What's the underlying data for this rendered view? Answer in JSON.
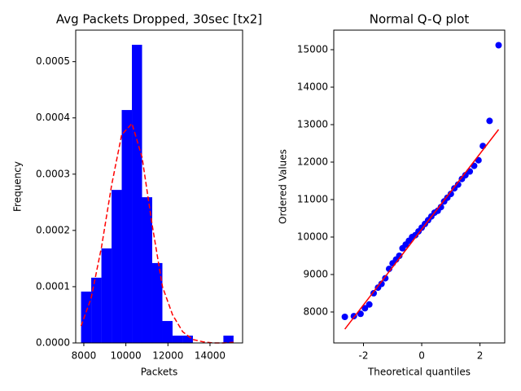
{
  "chart_data": [
    {
      "type": "histogram",
      "title": "Avg Packets Dropped, 30sec [tx2]",
      "x_label": "Packets",
      "y_label": "Frequency",
      "bins": [
        7870,
        8353,
        8837,
        9320,
        9803,
        10287,
        10770,
        11253,
        11737,
        12220,
        12703,
        13187,
        13670,
        14153,
        14637,
        15120
      ],
      "values": [
        9.13e-05,
        0.000116,
        0.000168,
        0.000272,
        0.000414,
        0.00053,
        0.000259,
        0.000142,
        3.9e-05,
        1.3e-05,
        1.3e-05,
        0,
        0,
        0,
        1.3e-05
      ],
      "color": "#0000ff",
      "fit_line": {
        "x": [
          7870,
          8350,
          8840,
          9320,
          9800,
          10290,
          10770,
          11250,
          11740,
          12220,
          12700,
          13190,
          13670,
          14150,
          14640,
          15120
        ],
        "y": [
          3e-05,
          8e-05,
          0.00017,
          0.00028,
          0.00037,
          0.00039,
          0.00033,
          0.00021,
          0.0001,
          5e-05,
          2e-05,
          6e-06,
          2e-06,
          0,
          0,
          1e-06
        ],
        "color": "#ff0000",
        "dashed": true
      },
      "xlim": [
        7615,
        15550
      ],
      "ylim": [
        0,
        0.000556
      ],
      "xticks": [
        8000,
        10000,
        12000,
        14000
      ],
      "yticks": [
        {
          "value": 0,
          "label": "0.0000"
        },
        0.0001,
        0.0002,
        0.0003,
        0.0004,
        0.0005
      ]
    },
    {
      "type": "scatter",
      "title": "Normal Q-Q plot",
      "x_label": "Theoretical quantiles",
      "y_label": "Ordered Values",
      "x": [
        -2.64,
        -2.33,
        -2.1,
        -1.95,
        -1.8,
        -1.65,
        -1.5,
        -1.38,
        -1.25,
        -1.12,
        -1.0,
        -0.88,
        -0.77,
        -0.66,
        -0.55,
        -0.44,
        -0.33,
        -0.22,
        -0.11,
        0,
        0.11,
        0.22,
        0.33,
        0.44,
        0.55,
        0.66,
        0.77,
        0.88,
        1.0,
        1.12,
        1.25,
        1.38,
        1.5,
        1.65,
        1.8,
        1.95,
        2.1,
        2.33,
        2.64
      ],
      "y": [
        7870,
        7890,
        7950,
        8100,
        8200,
        8500,
        8650,
        8750,
        8900,
        9150,
        9300,
        9400,
        9500,
        9700,
        9800,
        9900,
        10000,
        10050,
        10150,
        10250,
        10350,
        10450,
        10550,
        10650,
        10700,
        10800,
        10950,
        11050,
        11150,
        11300,
        11400,
        11550,
        11650,
        11750,
        11900,
        12050,
        12430,
        13100,
        15120
      ],
      "color": "#0000ff",
      "fit_line": {
        "x": [
          -2.64,
          2.64
        ],
        "y": [
          7543,
          12870
        ],
        "color": "#ff0000",
        "dashed": false
      },
      "xlim": [
        -3.02,
        2.85
      ],
      "ylim": [
        7174,
        15522
      ],
      "xticks": [
        -2,
        0,
        2
      ],
      "yticks": [
        8000,
        9000,
        10000,
        11000,
        12000,
        13000,
        14000,
        15000
      ]
    }
  ]
}
